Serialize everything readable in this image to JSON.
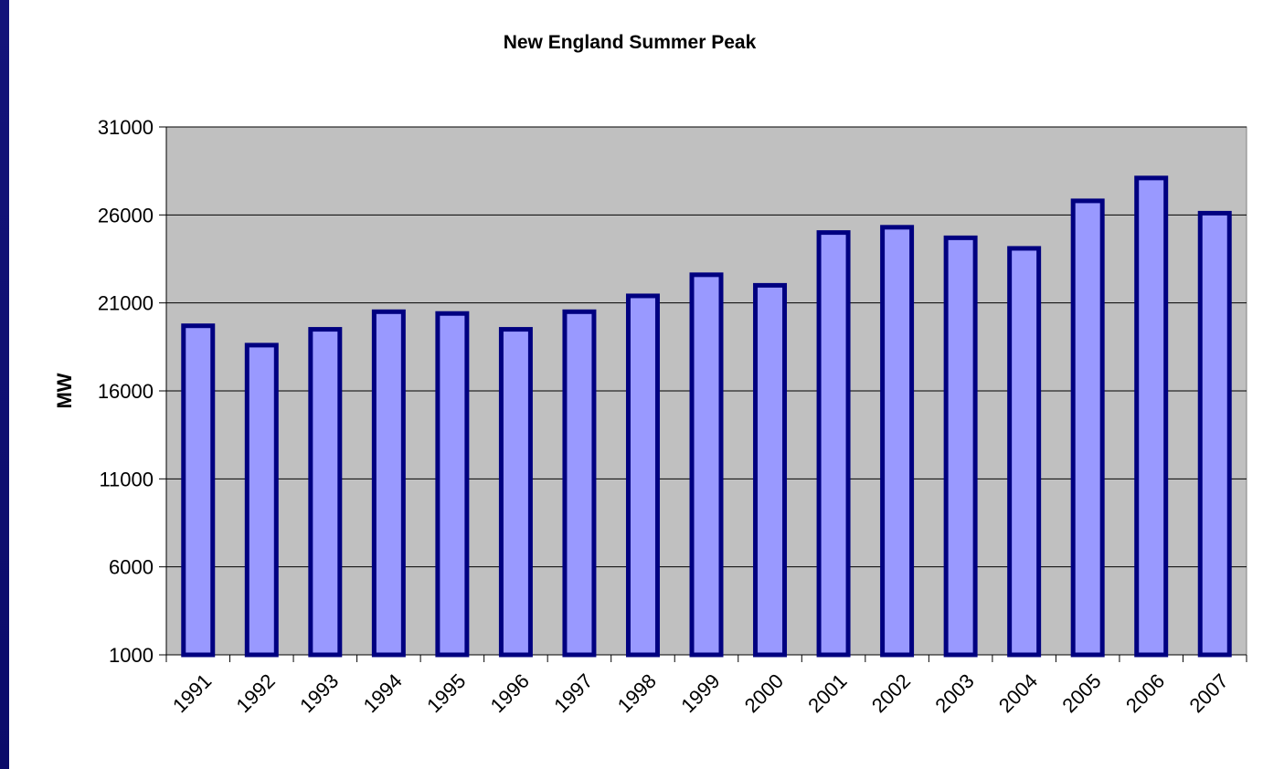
{
  "chart_data": {
    "type": "bar",
    "title": "New England Summer Peak",
    "xlabel": "",
    "ylabel": "MW",
    "categories": [
      "1991",
      "1992",
      "1993",
      "1994",
      "1995",
      "1996",
      "1997",
      "1998",
      "1999",
      "2000",
      "2001",
      "2002",
      "2003",
      "2004",
      "2005",
      "2006",
      "2007"
    ],
    "values": [
      19700,
      18600,
      19500,
      20500,
      20400,
      19500,
      20500,
      21400,
      22600,
      22000,
      25000,
      25300,
      24700,
      24100,
      26800,
      28100,
      26100
    ],
    "yticks": [
      "31000",
      "26000",
      "21000",
      "16000",
      "11000",
      "6000",
      "1000"
    ],
    "ylim": [
      1000,
      31000
    ],
    "grid": true,
    "legend": "none",
    "colors": {
      "plot_background": "#c0c0c0",
      "bar_fill": "#9999ff",
      "bar_border": "#000080",
      "gridline": "#000000",
      "frame": "#0b0b6a"
    }
  }
}
